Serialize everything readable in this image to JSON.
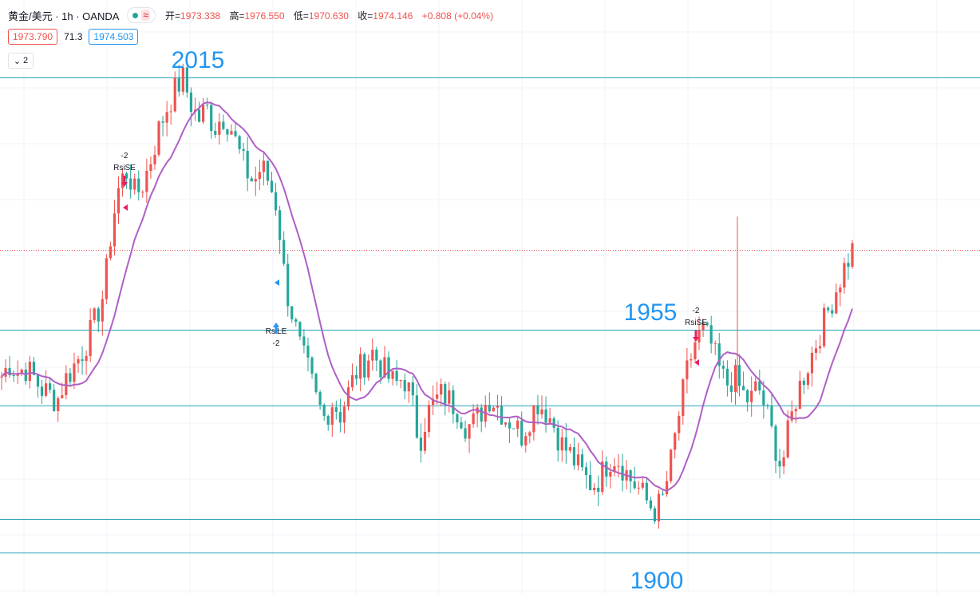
{
  "header": {
    "symbol": "黄金/美元 · 1h · OANDA",
    "wave_icon": "≈",
    "status_color": "#26a69a",
    "open_label": "开=",
    "open": "1973.338",
    "high_label": "高=",
    "high": "1976.550",
    "low_label": "低=",
    "low": "1970.630",
    "close_label": "收=",
    "close": "1974.146",
    "change": "+0.808 (+0.04%)",
    "value_color": "#ef5350"
  },
  "quote": {
    "bid": "1973.790",
    "spread": "71.3",
    "ask": "1974.503"
  },
  "indicators": {
    "collapse_count": "2"
  },
  "colors": {
    "up": "#ef5350",
    "down": "#26a69a",
    "ma": "#b05fc6",
    "level_line": "#26a2b8",
    "annotation": "#2196f3",
    "grid": "#f0f3fa"
  },
  "chart_data": {
    "type": "candlestick",
    "title": "",
    "ylim": [
      1893,
      2032
    ],
    "levels": [
      2015,
      1955,
      1937,
      1910,
      1902
    ],
    "current_price_line": 1974,
    "annotations": [
      {
        "text": "2015",
        "price": 2017
      },
      {
        "text": "1955",
        "price": 1957
      },
      {
        "text": "1900",
        "price": 1897
      }
    ],
    "signals": [
      {
        "label": "RsiSE",
        "value": "-2",
        "type": "short"
      },
      {
        "label": "RsiLE",
        "value": "-2",
        "type": "long"
      },
      {
        "label": "RsiSE",
        "value": "-2",
        "type": "short"
      }
    ],
    "close_path": [
      1944,
      1947,
      1945,
      1946,
      1944,
      1941,
      1940,
      1938,
      1943,
      1946,
      1949,
      1953,
      1958,
      1964,
      1980,
      1990,
      1993,
      1987,
      1990,
      1996,
      2003,
      2008,
      2012,
      2015,
      2009,
      2005,
      2008,
      2003,
      2006,
      2004,
      1998,
      1993,
      1990,
      1994,
      1990,
      1984,
      1966,
      1958,
      1950,
      1945,
      1938,
      1934,
      1938,
      1935,
      1940,
      1945,
      1947,
      1950,
      1947,
      1944,
      1942,
      1944,
      1939,
      1928,
      1935,
      1938,
      1940,
      1938,
      1936,
      1932,
      1933,
      1936,
      1939,
      1937,
      1934,
      1933,
      1930,
      1934,
      1938,
      1936,
      1933,
      1928,
      1926,
      1923,
      1920,
      1918,
      1920,
      1924,
      1925,
      1922,
      1919,
      1917,
      1914,
      1912,
      1915,
      1924,
      1935,
      1945,
      1952,
      1955,
      1952,
      1946,
      1942,
      1944,
      1940,
      1938,
      1942,
      1936,
      1929,
      1922,
      1932,
      1940,
      1945,
      1950,
      1955,
      1960,
      1965,
      1970,
      1974
    ]
  }
}
